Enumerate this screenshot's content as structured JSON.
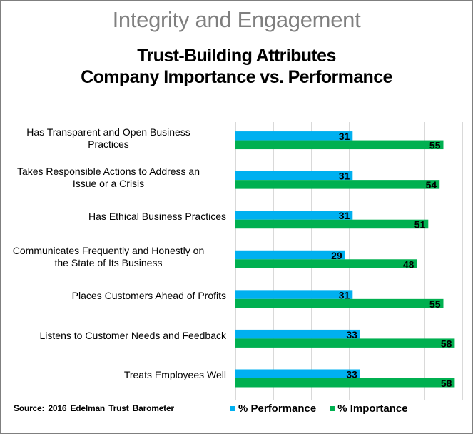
{
  "header": {
    "supertitle": "Integrity and Engagement",
    "title_line1": "Trust-Building Attributes",
    "title_line2": "Company Importance vs. Performance"
  },
  "source": "Source: 2016  Edelman Trust  Barometer",
  "colors": {
    "performance": "#00b0f0",
    "importance": "#00b050",
    "gridline": "#d9d9d9",
    "supertitle": "#7f7f7f"
  },
  "chart_data": {
    "type": "bar",
    "orientation": "horizontal",
    "title": "Trust-Building Attributes Company Importance vs. Performance",
    "categories": [
      [
        "Has Transparent and Open Business",
        "Practices"
      ],
      [
        "Takes Responsible Actions to Address an",
        "Issue or a Crisis"
      ],
      [
        "Has Ethical Business Practices"
      ],
      [
        "Communicates Frequently and Honestly on",
        "the State of Its Business"
      ],
      [
        "Places Customers Ahead of Profits"
      ],
      [
        "Listens to Customer Needs and Feedback"
      ],
      [
        "Treats Employees Well"
      ]
    ],
    "series": [
      {
        "name": "% Performance",
        "color": "#00b0f0",
        "values": [
          31,
          31,
          31,
          29,
          31,
          33,
          33
        ]
      },
      {
        "name": "% Importance",
        "color": "#00b050",
        "values": [
          55,
          54,
          51,
          48,
          55,
          58,
          58
        ]
      }
    ],
    "xlim": [
      0,
      60
    ],
    "x_gridline_step": 10,
    "grid": true,
    "show_x_tick_labels": false,
    "data_labels": true,
    "legend_position": "bottom",
    "xlabel": "",
    "ylabel": ""
  }
}
